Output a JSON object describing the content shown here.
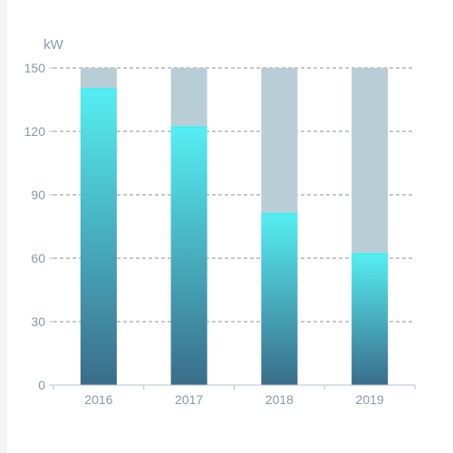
{
  "chart_data": {
    "type": "bar",
    "unit_label": "kW",
    "categories": [
      "2016",
      "2017",
      "2018",
      "2019"
    ],
    "background_values": [
      150,
      150,
      150,
      150
    ],
    "values": [
      140,
      122,
      81,
      62
    ],
    "ylim": [
      0,
      150
    ],
    "yticks": [
      0,
      30,
      60,
      90,
      120,
      150
    ],
    "grid": true,
    "colors": {
      "bar_top": "#55eef2",
      "bar_bottom": "#3a6d8a",
      "bar_cap": "#3ff0f5",
      "background_bar": "#b9cdd6",
      "grid": "#8c9196",
      "axis": "#b8c2cc",
      "text": "#8a99a8"
    }
  }
}
